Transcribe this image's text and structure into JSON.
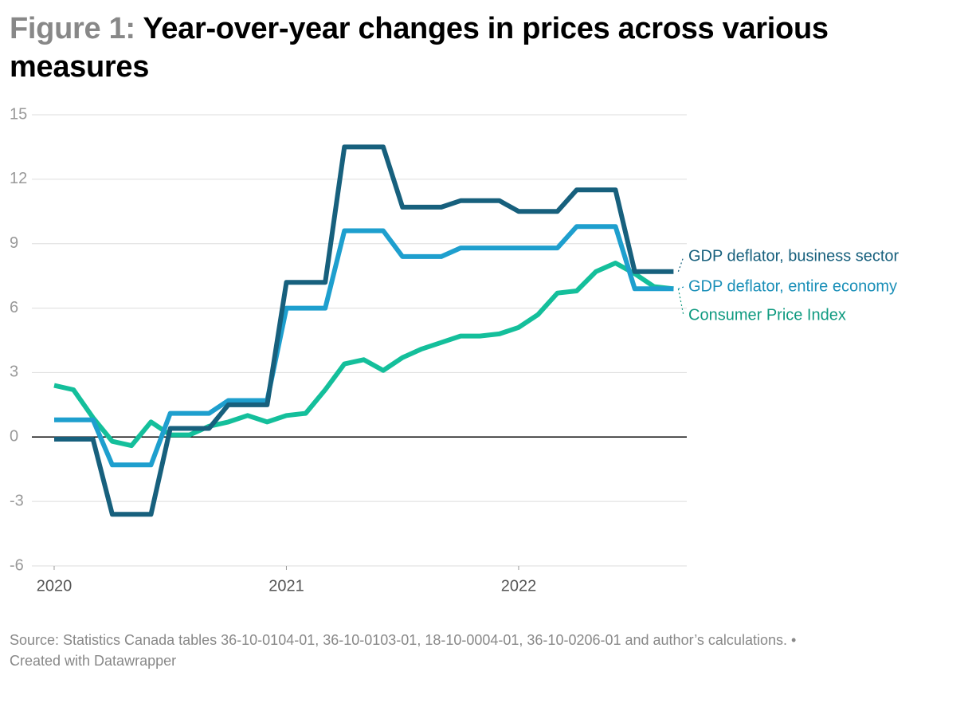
{
  "chart_data": {
    "type": "line",
    "figure_label": "Figure 1:",
    "title": "Year-over-year changes in prices across various measures",
    "source": "Source: Statistics Canada tables 36-10-0104-01, 36-10-0103-01, 18-10-0004-01, 36-10-0206-01 and author’s calculations. •",
    "credit": "Created with Datawrapper",
    "x": [
      2020,
      2020.083,
      2020.167,
      2020.25,
      2020.333,
      2020.417,
      2020.5,
      2020.583,
      2020.667,
      2020.75,
      2020.833,
      2020.917,
      2021,
      2021.083,
      2021.167,
      2021.25,
      2021.333,
      2021.417,
      2021.5,
      2021.583,
      2021.667,
      2021.75,
      2021.833,
      2021.917,
      2022,
      2022.083,
      2022.167,
      2022.25,
      2022.333,
      2022.417,
      2022.5,
      2022.583,
      2022.667
    ],
    "series": [
      {
        "name": "Consumer Price Index",
        "color": "#14bf9b",
        "label_color": "#0f9a80",
        "values": [
          2.4,
          2.2,
          0.9,
          -0.2,
          -0.4,
          0.7,
          0.1,
          0.1,
          0.5,
          0.7,
          1.0,
          0.7,
          1.0,
          1.1,
          2.2,
          3.4,
          3.6,
          3.1,
          3.7,
          4.1,
          4.4,
          4.7,
          4.7,
          4.8,
          5.1,
          5.7,
          6.7,
          6.8,
          7.7,
          8.1,
          7.6,
          7.0,
          6.9
        ]
      },
      {
        "name": "GDP deflator, entire economy",
        "color": "#1e9fce",
        "label_color": "#1a8fb8",
        "values": [
          0.8,
          0.8,
          0.8,
          -1.3,
          -1.3,
          -1.3,
          1.1,
          1.1,
          1.1,
          1.7,
          1.7,
          1.7,
          6.0,
          6.0,
          6.0,
          9.6,
          9.6,
          9.6,
          8.4,
          8.4,
          8.4,
          8.8,
          8.8,
          8.8,
          8.8,
          8.8,
          8.8,
          9.8,
          9.8,
          9.8,
          6.9,
          6.9,
          6.9
        ]
      },
      {
        "name": "GDP deflator, business sector",
        "color": "#17607d",
        "label_color": "#17607d",
        "values": [
          -0.1,
          -0.1,
          -0.1,
          -3.6,
          -3.6,
          -3.6,
          0.4,
          0.4,
          0.4,
          1.5,
          1.5,
          1.5,
          7.2,
          7.2,
          7.2,
          13.5,
          13.5,
          13.5,
          10.7,
          10.7,
          10.7,
          11.0,
          11.0,
          11.0,
          10.5,
          10.5,
          10.5,
          11.5,
          11.5,
          11.5,
          7.7,
          7.7,
          7.7
        ]
      }
    ],
    "xlim": [
      2019.904,
      2022.724
    ],
    "xticks": [
      2020,
      2021,
      2022
    ],
    "ylim": [
      -6,
      15
    ],
    "yticks": [
      15,
      12,
      9,
      6,
      3,
      0,
      -3,
      -6
    ],
    "grid": true
  }
}
